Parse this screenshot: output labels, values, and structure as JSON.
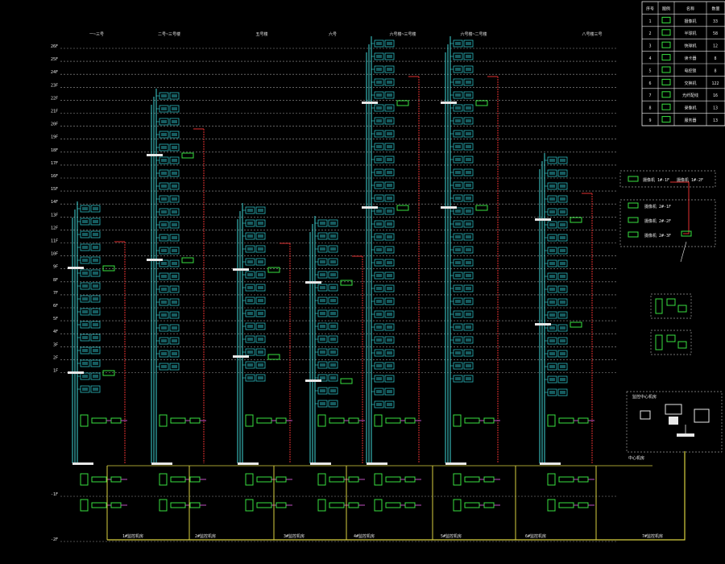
{
  "colors": {
    "background": "#000000",
    "floor_line": "#9a9a9a",
    "riser_cyan": "#3fd6d6",
    "riser_red": "#e03030",
    "riser_white": "#e8e8e8",
    "trunk_yellow": "#d8d040",
    "device_green": "#38e040",
    "panel_cyan": "#2bb8c0",
    "text": "#e8e8e8"
  },
  "legend": {
    "headers": [
      "序号",
      "图例",
      "名称",
      "数量"
    ],
    "rows": [
      {
        "no": "1",
        "icon": "camera-icon",
        "name": "摄像机",
        "qty": "33"
      },
      {
        "no": "2",
        "icon": "dome-icon",
        "name": "半球机",
        "qty": "58"
      },
      {
        "no": "3",
        "icon": "ptz-icon",
        "name": "快球机",
        "qty": "12"
      },
      {
        "no": "4",
        "icon": "reader-icon",
        "name": "读卡器",
        "qty": "8"
      },
      {
        "no": "5",
        "icon": "door-icon",
        "name": "电控锁",
        "qty": "8"
      },
      {
        "no": "6",
        "icon": "switch-icon",
        "name": "交换机",
        "qty": "122"
      },
      {
        "no": "7",
        "icon": "box-icon",
        "name": "光纤配线",
        "qty": "16"
      },
      {
        "no": "8",
        "icon": "nvr-icon",
        "name": "录像机",
        "qty": "13"
      },
      {
        "no": "9",
        "icon": "server-icon",
        "name": "服务器",
        "qty": "13"
      }
    ]
  },
  "buildings": [
    {
      "label": "一~三号"
    },
    {
      "label": "二号~三号楼"
    },
    {
      "label": "五号楼"
    },
    {
      "label": "六号"
    },
    {
      "label": "六号楼~三号楼"
    },
    {
      "label": "六号楼~二号楼"
    },
    {
      "label": "八号楼三号"
    }
  ],
  "floors": [
    "26F",
    "25F",
    "24F",
    "23F",
    "22F",
    "21F",
    "20F",
    "19F",
    "18F",
    "17F",
    "16F",
    "15F",
    "14F",
    "13F",
    "12F",
    "11F",
    "10F",
    "9F",
    "8F",
    "7F",
    "6F",
    "5F",
    "4F",
    "3F",
    "2F",
    "1F",
    "-1F",
    "-2F"
  ],
  "bottom_labels": [
    "1#监控机房",
    "2#监控机房",
    "3#监控机房",
    "4#监控机房",
    "5#监控机房",
    "6#监控机房",
    "7#监控机房"
  ],
  "side_notes": {
    "group1": [
      "摄像机 1#-1F",
      "摄像机 1#-2F"
    ],
    "group2": [
      "摄像机 2#-1F",
      "摄像机 2#-2F",
      "摄像机 2#-3F"
    ],
    "control": "监控中心机房",
    "center_label": "中心机房"
  }
}
